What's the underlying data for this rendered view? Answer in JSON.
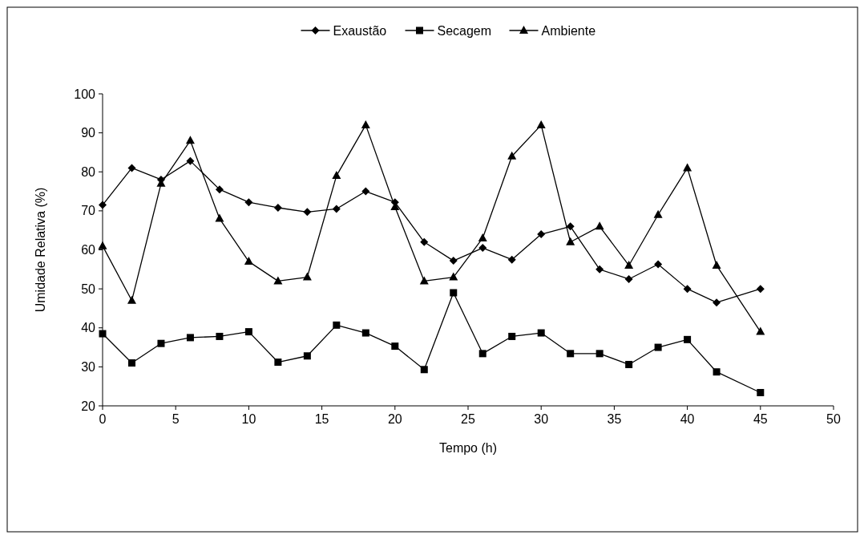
{
  "chart_data": {
    "type": "line",
    "xlabel": "Tempo (h)",
    "ylabel": "Umidade Relativa (%)",
    "x": [
      0,
      2,
      4,
      6,
      8,
      10,
      12,
      14,
      16,
      18,
      20,
      22,
      24,
      26,
      28,
      30,
      32,
      34,
      36,
      38,
      40,
      42,
      45
    ],
    "series": [
      {
        "name": "Exaustão",
        "color": "#000000",
        "marker": "diamond",
        "values": [
          71.5,
          81,
          78,
          82.8,
          75.5,
          72.2,
          70.8,
          69.7,
          70.5,
          75,
          72.2,
          62,
          57.2,
          60.5,
          57.5,
          64,
          66,
          55,
          52.5,
          56.3,
          50,
          46.5,
          50
        ]
      },
      {
        "name": "Secagem",
        "color": "#000000",
        "marker": "square",
        "values": [
          38.5,
          31,
          36,
          37.5,
          37.8,
          39,
          31.2,
          32.8,
          40.7,
          38.7,
          35.3,
          29.3,
          49,
          33.4,
          37.8,
          38.7,
          33.4,
          33.4,
          30.6,
          35,
          37,
          28.7,
          23.4
        ]
      },
      {
        "name": "Ambiente",
        "color": "#000000",
        "marker": "triangle",
        "values": [
          61,
          47,
          77,
          88,
          68,
          57,
          52,
          53,
          79,
          92,
          71,
          52,
          53,
          63,
          84,
          92,
          62,
          66,
          56,
          69,
          81,
          56,
          39
        ]
      }
    ],
    "xlim": [
      0,
      50
    ],
    "xticks": [
      0,
      5,
      10,
      15,
      20,
      25,
      30,
      35,
      40,
      45,
      50
    ],
    "ylim": [
      20,
      100
    ],
    "yticks": [
      20,
      30,
      40,
      50,
      60,
      70,
      80,
      90,
      100
    ],
    "grid": false,
    "legend": "top",
    "line_style": "solid"
  }
}
